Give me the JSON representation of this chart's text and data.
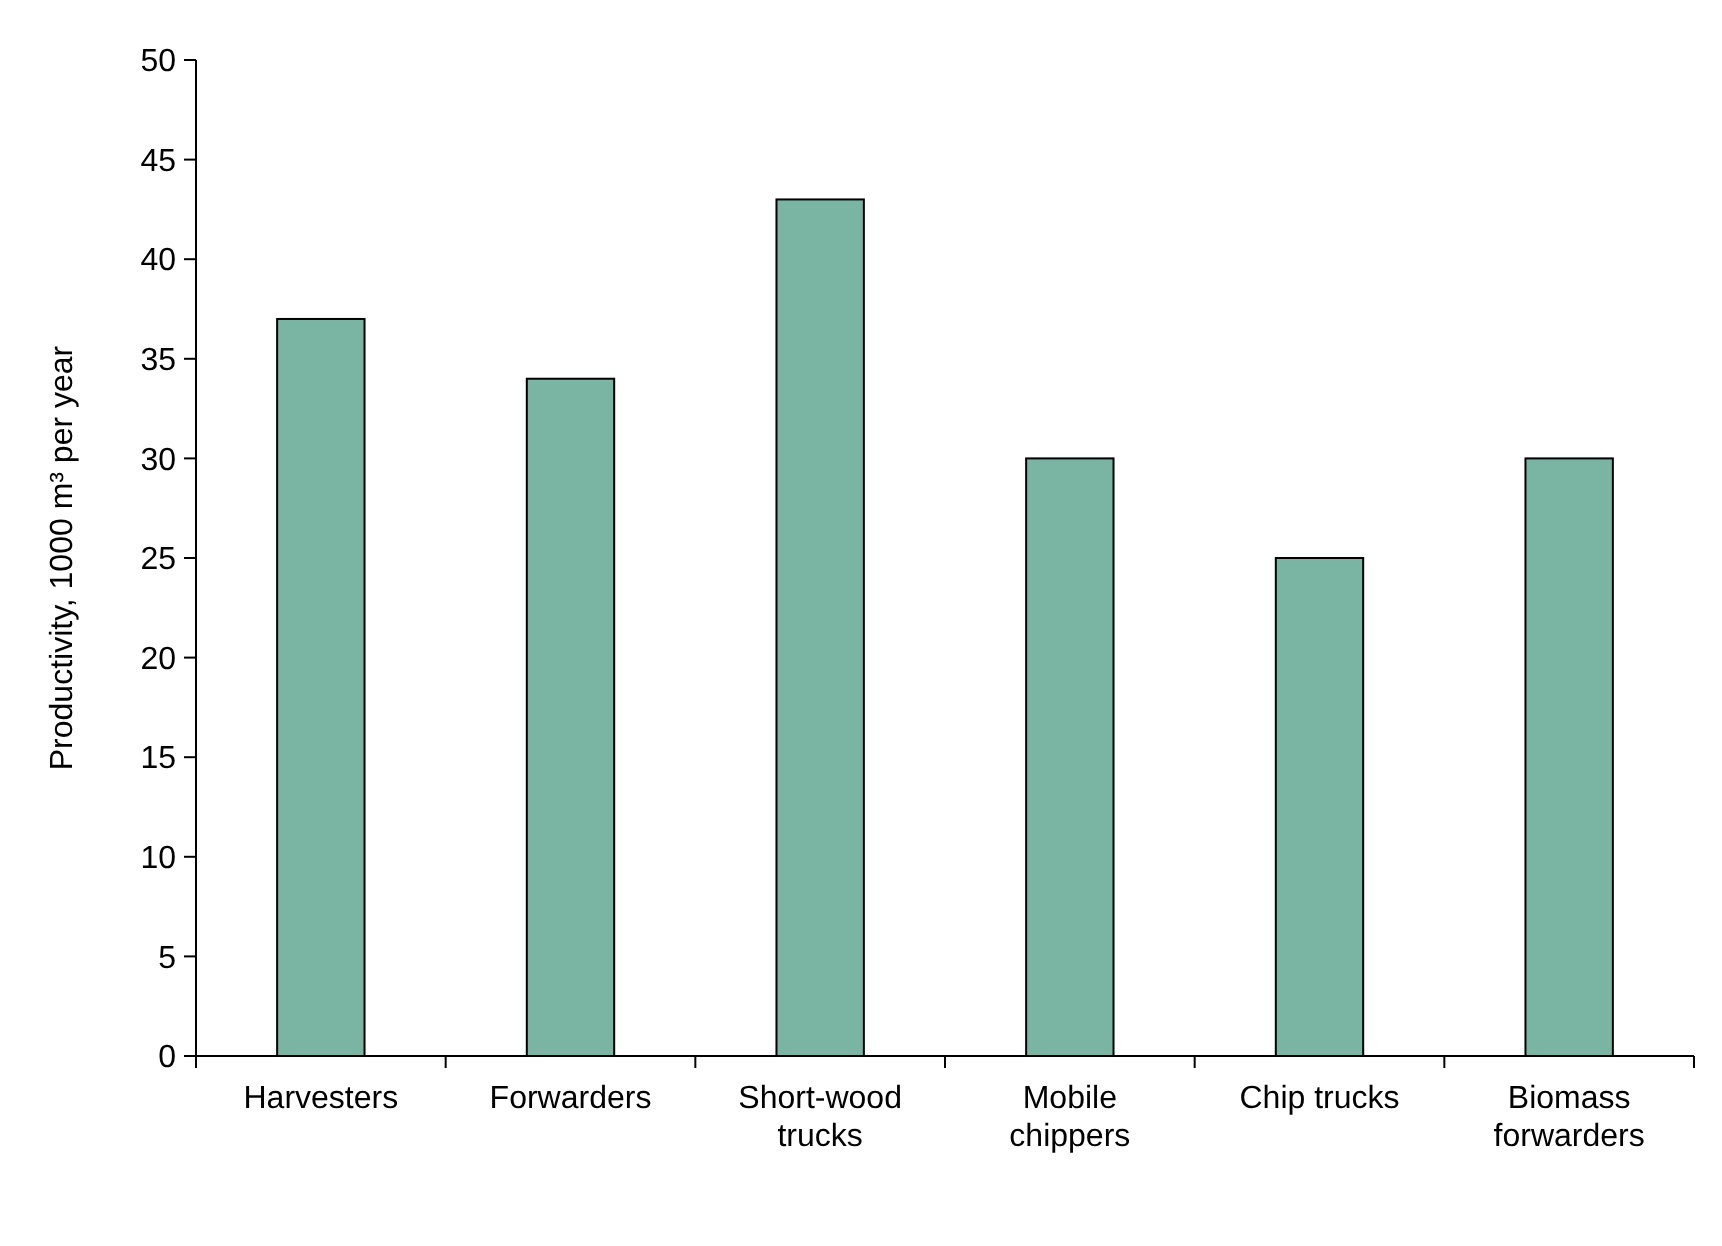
{
  "chart_data": {
    "type": "bar",
    "ylabel": "Productivity, 1000 m³ per year",
    "categories": [
      "Harvesters",
      "Forwarders",
      "Short-wood trucks",
      "Mobile chippers",
      "Chip trucks",
      "Biomass forwarders"
    ],
    "values": [
      37,
      34,
      43,
      30,
      25,
      30
    ],
    "color": "#7ab5a3",
    "ylim": [
      0,
      50
    ],
    "yticks": [
      0,
      5,
      10,
      15,
      20,
      25,
      30,
      35,
      40,
      45,
      50
    ],
    "grid": false
  }
}
